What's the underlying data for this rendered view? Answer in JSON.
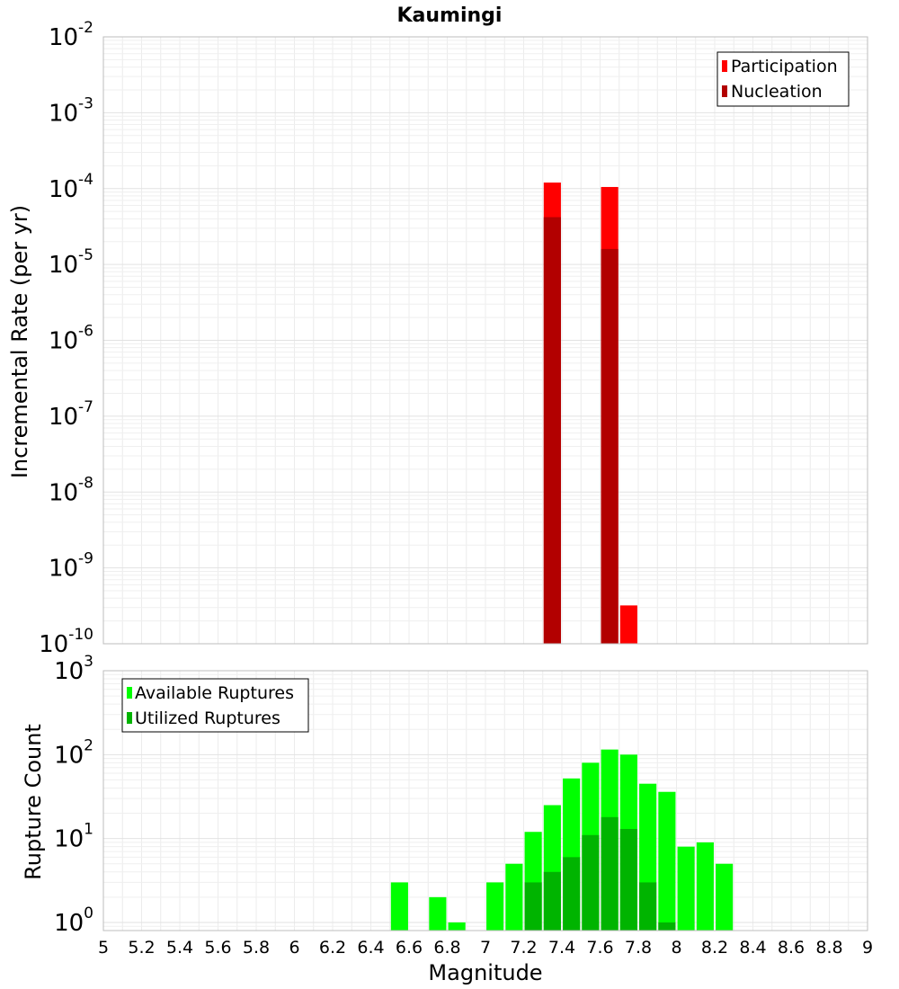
{
  "title": "Kaumingi",
  "xlabel": "Magnitude",
  "x_ticks": [
    5,
    5.2,
    5.4,
    5.6,
    5.8,
    6,
    6.2,
    6.4,
    6.6,
    6.8,
    7,
    7.2,
    7.4,
    7.6,
    7.8,
    8,
    8.2,
    8.4,
    8.6,
    8.8,
    9
  ],
  "chart_data": [
    {
      "type": "bar",
      "ylabel": "Incremental Rate (per yr)",
      "xlim": [
        5,
        9
      ],
      "ylim": [
        1e-10,
        0.01
      ],
      "yscale": "log",
      "grid": true,
      "legend_position": "top-right",
      "y_tick_exponents": [
        -2,
        -3,
        -4,
        -5,
        -6,
        -7,
        -8,
        -9,
        -10
      ],
      "bar_width": 0.09,
      "series": [
        {
          "name": "Participation",
          "color": "#ff0000",
          "points": [
            {
              "x": 7.35,
              "y": 0.00012
            },
            {
              "x": 7.65,
              "y": 0.000105
            },
            {
              "x": 7.75,
              "y": 3.2e-10
            }
          ]
        },
        {
          "name": "Nucleation",
          "color": "#b20000",
          "points": [
            {
              "x": 7.35,
              "y": 4.2e-05
            },
            {
              "x": 7.65,
              "y": 1.6e-05
            }
          ]
        }
      ]
    },
    {
      "type": "bar",
      "ylabel": "Rupture Count",
      "xlim": [
        5,
        9
      ],
      "ylim": [
        0.8,
        1000
      ],
      "yscale": "log",
      "grid": true,
      "legend_position": "top-left",
      "y_tick_exponents": [
        3,
        2,
        1,
        0
      ],
      "bar_width": 0.09,
      "series": [
        {
          "name": "Available Ruptures",
          "color": "#00ff00",
          "points": [
            {
              "x": 6.55,
              "y": 3
            },
            {
              "x": 6.75,
              "y": 2
            },
            {
              "x": 6.85,
              "y": 1
            },
            {
              "x": 7.05,
              "y": 3
            },
            {
              "x": 7.15,
              "y": 5
            },
            {
              "x": 7.25,
              "y": 12
            },
            {
              "x": 7.35,
              "y": 25
            },
            {
              "x": 7.45,
              "y": 52
            },
            {
              "x": 7.55,
              "y": 80
            },
            {
              "x": 7.65,
              "y": 115
            },
            {
              "x": 7.75,
              "y": 100
            },
            {
              "x": 7.85,
              "y": 45
            },
            {
              "x": 7.95,
              "y": 36
            },
            {
              "x": 8.05,
              "y": 8
            },
            {
              "x": 8.15,
              "y": 9
            },
            {
              "x": 8.25,
              "y": 5
            }
          ]
        },
        {
          "name": "Utilized Ruptures",
          "color": "#00b400",
          "points": [
            {
              "x": 7.25,
              "y": 3
            },
            {
              "x": 7.35,
              "y": 4
            },
            {
              "x": 7.45,
              "y": 6
            },
            {
              "x": 7.55,
              "y": 11
            },
            {
              "x": 7.65,
              "y": 18
            },
            {
              "x": 7.75,
              "y": 13
            },
            {
              "x": 7.85,
              "y": 3
            },
            {
              "x": 7.95,
              "y": 1
            }
          ]
        }
      ]
    }
  ]
}
